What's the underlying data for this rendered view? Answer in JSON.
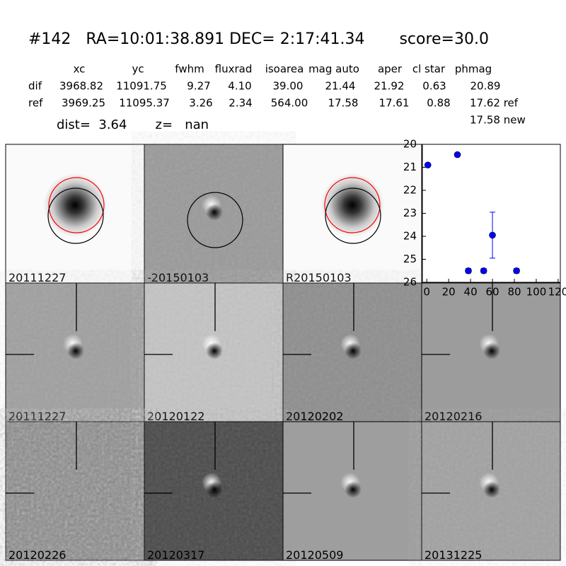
{
  "header": {
    "title": "#142   RA=10:01:38.891 DEC= 2:17:41.34       score=30.0",
    "dist": "dist=  3.64       z=   nan"
  },
  "table": {
    "columns": [
      "xc",
      "yc",
      "fwhm",
      "fluxrad",
      "isoarea",
      "mag auto",
      "aper",
      "cl star",
      "phmag"
    ],
    "rows": [
      [
        "dif",
        "3968.82",
        "11091.75",
        "9.27",
        "4.10",
        "39.00",
        "21.44",
        "21.92",
        "0.63",
        "20.89"
      ],
      [
        "ref",
        "3969.25",
        "11095.37",
        "3.26",
        "2.34",
        "564.00",
        "17.58",
        "17.61",
        "0.88",
        "17.62 ref"
      ]
    ],
    "extra": "17.58 new"
  },
  "panels": [
    "20111227",
    "-20150103",
    "R20150103",
    "20111227",
    "20120122",
    "20120202",
    "20120216",
    "20120226",
    "20120317",
    "20120509",
    "20131225"
  ],
  "highlight_panel": 3,
  "highlight_color": "#ff0000",
  "chart_data": {
    "type": "scatter",
    "x": [
      1,
      28,
      38,
      52,
      60,
      82
    ],
    "values": [
      20.9,
      20.45,
      25.5,
      25.5,
      23.95,
      25.5
    ],
    "errors": [
      0.05,
      0.05,
      0.1,
      0.1,
      1.0,
      0.1
    ],
    "color": "#0000ff",
    "xlim": [
      -4,
      122
    ],
    "xticks": [
      0,
      20,
      40,
      60,
      80,
      100,
      120
    ],
    "ylim": [
      20,
      26
    ],
    "yticks": [
      20,
      21,
      22,
      23,
      24,
      25,
      26
    ],
    "y_inverted": true
  }
}
